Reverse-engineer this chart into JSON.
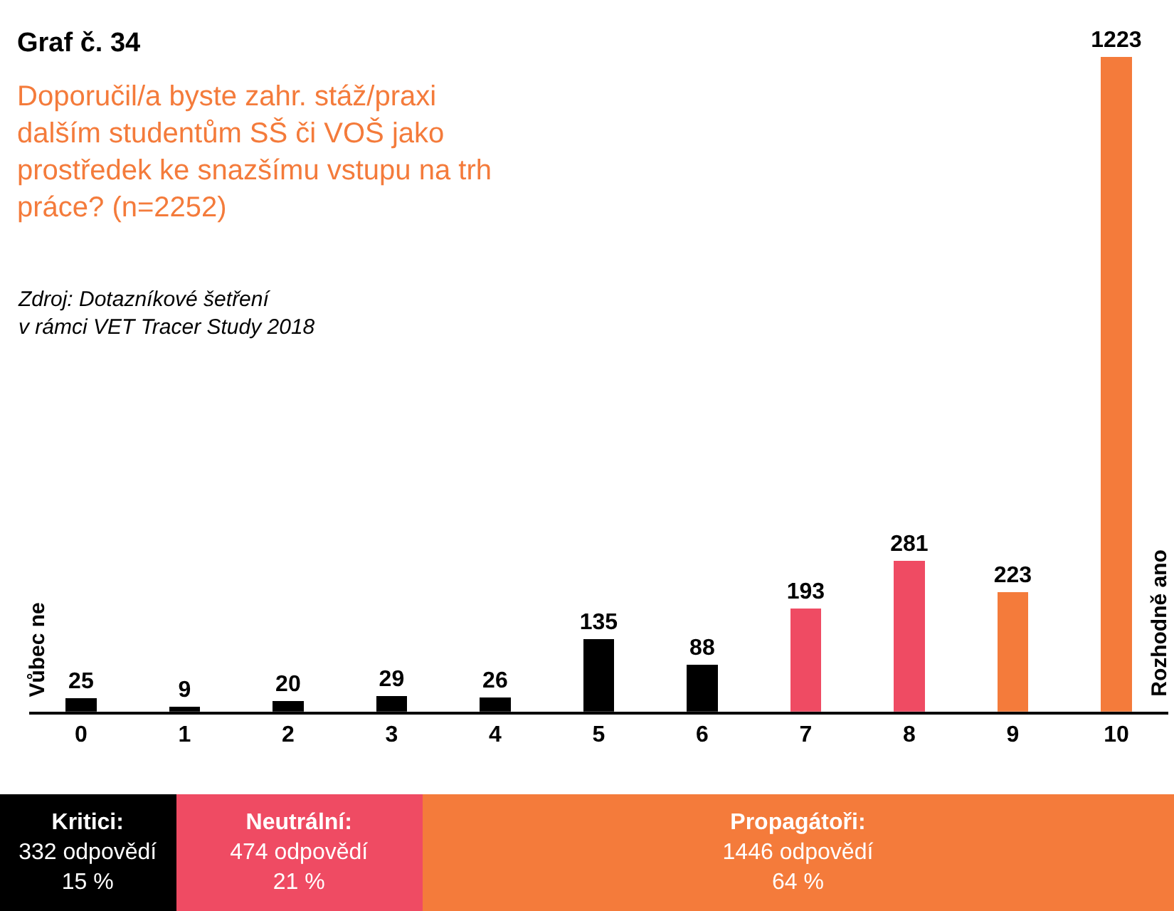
{
  "chart_data": [
    {
      "type": "bar",
      "title": "Graf č. 34",
      "subtitle": "Doporučil/a byste zahr. stáž/praxi\ndalším studentům SŠ či VOŠ jako\nprostředek ke snazšímu vstupu na trh\npráce? (n=2252)",
      "categories": [
        "0",
        "1",
        "2",
        "3",
        "4",
        "5",
        "6",
        "7",
        "8",
        "9",
        "10"
      ],
      "values": [
        25,
        9,
        20,
        29,
        26,
        135,
        88,
        193,
        281,
        223,
        1223
      ],
      "colors": [
        "#000000",
        "#000000",
        "#000000",
        "#000000",
        "#000000",
        "#000000",
        "#000000",
        "#ef4b63",
        "#ef4b63",
        "#f47b3b",
        "#f47b3b"
      ],
      "data_labels": true,
      "tick_labels": "x",
      "annotations": [
        "Zdroj: Dotazníkové šetření\nv rámci VET Tracer Study 2018",
        "Vůbec ne",
        "Rozhodně ano"
      ]
    },
    {
      "type": "bar",
      "orientation": "horizontal",
      "stacked": true,
      "categories": [
        null
      ],
      "xlim": [
        0,
        100
      ],
      "tick_labels": false,
      "series": [
        {
          "name": "Kritici:",
          "color": "#000000",
          "values": [
            15
          ],
          "value_labels": [
            "332 odpovědí\n15 %"
          ]
        },
        {
          "name": "Neutrální:",
          "color": "#ef4b63",
          "values": [
            21
          ],
          "value_labels": [
            "474 odpovědí\n21 %"
          ]
        },
        {
          "name": "Propagátoři:",
          "color": "#f47b3b",
          "values": [
            64
          ],
          "value_labels": [
            "1446 odpovědí\n64 %"
          ]
        }
      ]
    }
  ]
}
